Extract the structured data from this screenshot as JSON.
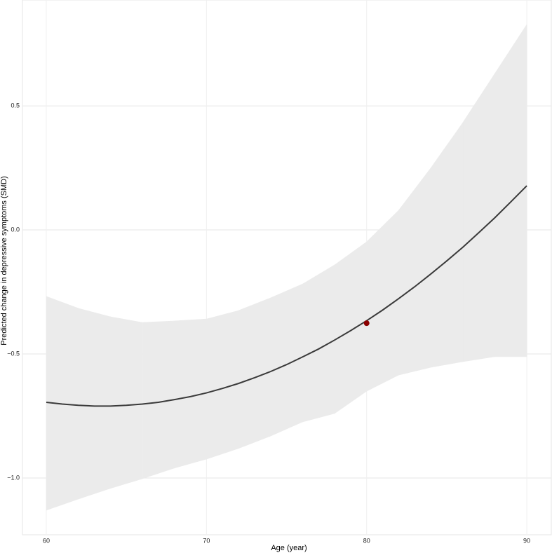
{
  "chart_data": {
    "type": "line",
    "x_label": "Age (year)",
    "y_label": "Predicted change in depressive symptoms (SMD)",
    "x": [
      60,
      61,
      62,
      63,
      64,
      65,
      66,
      67,
      68,
      69,
      70,
      71,
      72,
      73,
      74,
      75,
      76,
      77,
      78,
      79,
      80,
      81,
      82,
      83,
      84,
      85,
      86,
      87,
      88,
      89,
      90
    ],
    "series": [
      {
        "color": "#3a3a3a",
        "values": [
          -0.695,
          -0.702,
          -0.707,
          -0.71,
          -0.71,
          -0.707,
          -0.702,
          -0.695,
          -0.684,
          -0.672,
          -0.657,
          -0.639,
          -0.619,
          -0.596,
          -0.571,
          -0.543,
          -0.512,
          -0.48,
          -0.444,
          -0.406,
          -0.366,
          -0.323,
          -0.277,
          -0.229,
          -0.178,
          -0.125,
          -0.07,
          -0.011,
          0.049,
          0.113,
          0.178
        ]
      }
    ],
    "band": {
      "color": "#ebebeb",
      "x": [
        60,
        62,
        64,
        66,
        68,
        70,
        72,
        74,
        76,
        78,
        80,
        82,
        84,
        86,
        88,
        90
      ],
      "lower": [
        -1.13,
        -1.085,
        -1.042,
        -1.003,
        -0.96,
        -0.924,
        -0.881,
        -0.831,
        -0.774,
        -0.74,
        -0.65,
        -0.585,
        -0.554,
        -0.531,
        -0.511,
        -0.511
      ],
      "upper": [
        -0.268,
        -0.316,
        -0.35,
        -0.373,
        -0.367,
        -0.359,
        -0.325,
        -0.274,
        -0.218,
        -0.141,
        -0.048,
        0.079,
        0.249,
        0.432,
        0.63,
        0.828
      ]
    },
    "point": {
      "x": 80,
      "y": -0.376,
      "color": "#8b0000"
    },
    "xlim": [
      58.51,
      91.53
    ],
    "ylim": [
      -1.229,
      0.927
    ],
    "xticks": [
      60,
      70,
      80,
      90
    ],
    "yticks": [
      {
        "value": -1.0,
        "label": "−1.0"
      },
      {
        "value": -0.5,
        "label": "−0.5"
      },
      {
        "value": 0,
        "label": "0.0"
      },
      0.5
    ],
    "grid": true
  }
}
